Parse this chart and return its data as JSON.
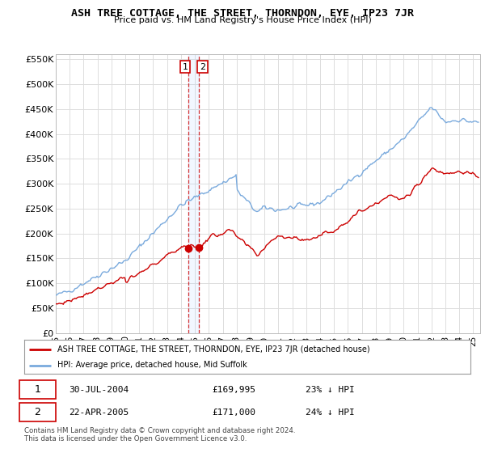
{
  "title": "ASH TREE COTTAGE, THE STREET, THORNDON, EYE, IP23 7JR",
  "subtitle": "Price paid vs. HM Land Registry's House Price Index (HPI)",
  "legend_line1": "ASH TREE COTTAGE, THE STREET, THORNDON, EYE, IP23 7JR (detached house)",
  "legend_line2": "HPI: Average price, detached house, Mid Suffolk",
  "transaction1_date": "30-JUL-2004",
  "transaction1_price": "£169,995",
  "transaction1_hpi": "23% ↓ HPI",
  "transaction2_date": "22-APR-2005",
  "transaction2_price": "£171,000",
  "transaction2_hpi": "24% ↓ HPI",
  "footer": "Contains HM Land Registry data © Crown copyright and database right 2024.\nThis data is licensed under the Open Government Licence v3.0.",
  "red_color": "#cc0000",
  "blue_color": "#7aaadd",
  "background_color": "#ffffff",
  "grid_color": "#dddddd",
  "ylim_min": 0,
  "ylim_max": 560000,
  "yticks": [
    0,
    50000,
    100000,
    150000,
    200000,
    250000,
    300000,
    350000,
    400000,
    450000,
    500000,
    550000
  ],
  "ytick_labels": [
    "£0",
    "£50K",
    "£100K",
    "£150K",
    "£200K",
    "£250K",
    "£300K",
    "£350K",
    "£400K",
    "£450K",
    "£500K",
    "£550K"
  ]
}
